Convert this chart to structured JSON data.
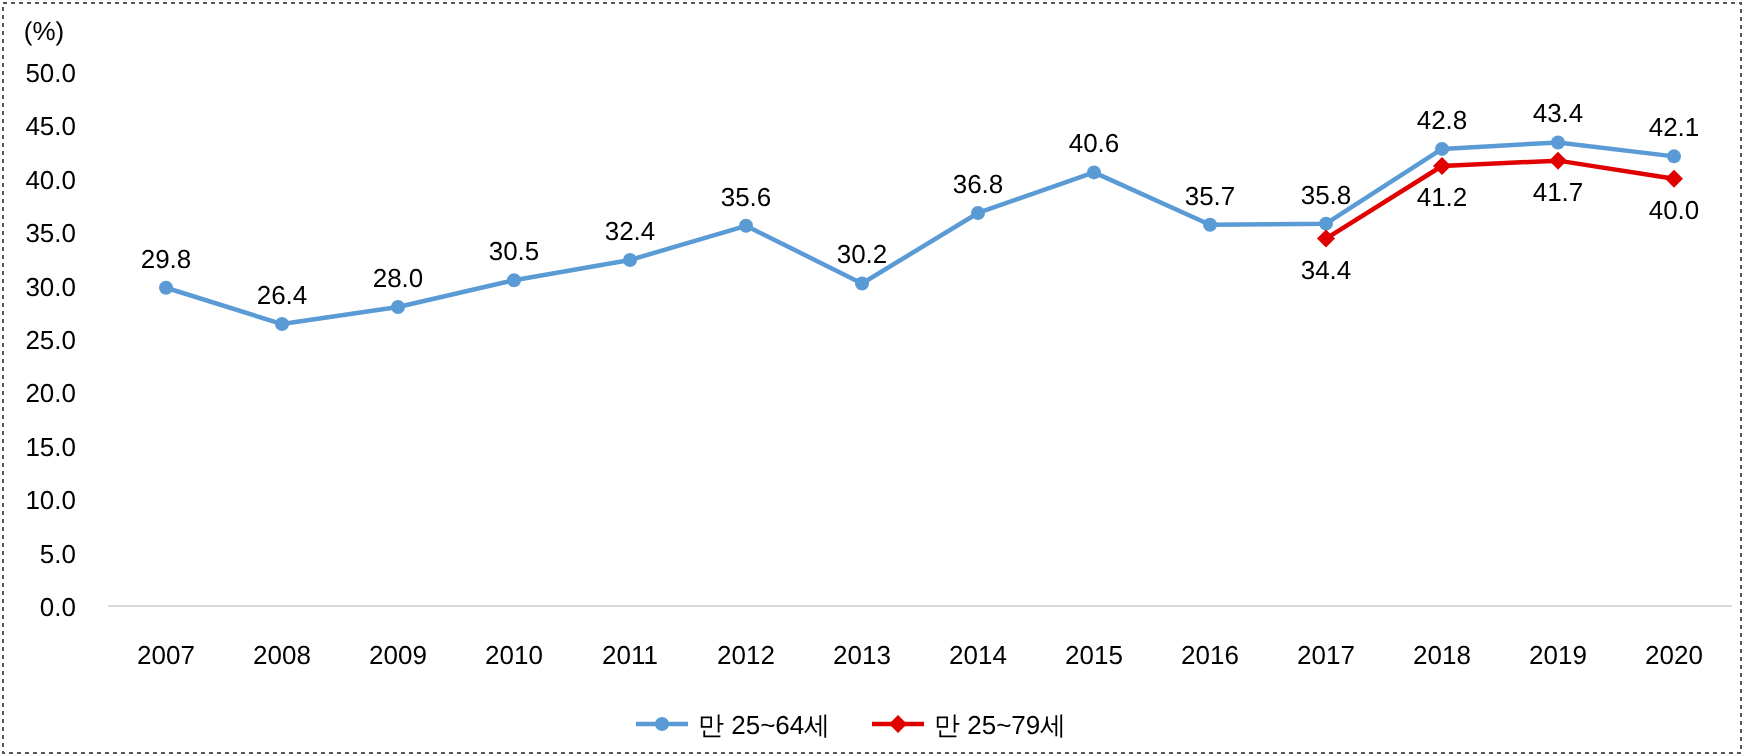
{
  "chart_data": {
    "type": "line",
    "ylabel": "(%)",
    "categories": [
      "2007",
      "2008",
      "2009",
      "2010",
      "2011",
      "2012",
      "2013",
      "2014",
      "2015",
      "2016",
      "2017",
      "2018",
      "2019",
      "2020"
    ],
    "series": [
      {
        "name": "만 25~64세",
        "color": "#5b9bd5",
        "marker": "circle",
        "values": [
          29.8,
          26.4,
          28.0,
          30.5,
          32.4,
          35.6,
          30.2,
          36.8,
          40.6,
          35.7,
          35.8,
          42.8,
          43.4,
          42.1
        ],
        "value_labels": [
          "29.8",
          "26.4",
          "28.0",
          "30.5",
          "32.4",
          "35.6",
          "30.2",
          "36.8",
          "40.6",
          "35.7",
          "35.8",
          "42.8",
          "43.4",
          "42.1"
        ]
      },
      {
        "name": "만 25~79세",
        "color": "#e00000",
        "marker": "diamond",
        "values": [
          null,
          null,
          null,
          null,
          null,
          null,
          null,
          null,
          null,
          null,
          34.4,
          41.2,
          41.7,
          40.0
        ],
        "value_labels": [
          null,
          null,
          null,
          null,
          null,
          null,
          null,
          null,
          null,
          null,
          "34.4",
          "41.2",
          "41.7",
          "40.0"
        ]
      }
    ],
    "ylim": [
      0,
      50
    ],
    "yticks": [
      {
        "value": 0,
        "label": "0.0"
      },
      {
        "value": 5,
        "label": "5.0"
      },
      {
        "value": 10,
        "label": "10.0"
      },
      {
        "value": 15,
        "label": "15.0"
      },
      {
        "value": 20,
        "label": "20.0"
      },
      {
        "value": 25,
        "label": "25.0"
      },
      {
        "value": 30,
        "label": "30.0"
      },
      {
        "value": 35,
        "label": "35.0"
      },
      {
        "value": 40,
        "label": "40.0"
      },
      {
        "value": 45,
        "label": "45.0"
      },
      {
        "value": 50,
        "label": "50.0"
      }
    ],
    "legend": "bottom",
    "grid": false
  }
}
